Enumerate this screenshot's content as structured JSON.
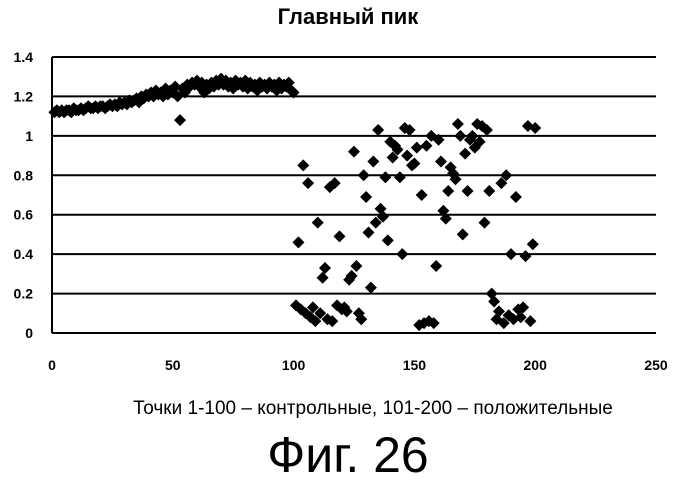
{
  "chart_data": {
    "type": "scatter",
    "title": "Главный пик",
    "xlabel": "Точки 1-100 – контрольные, 101-200 – положительные",
    "ylabel": "",
    "xlim": [
      0,
      250
    ],
    "ylim": [
      0,
      1.4
    ],
    "x_ticks": [
      "0",
      "50",
      "100",
      "150",
      "200",
      "250"
    ],
    "y_ticks": [
      "0",
      "0.2",
      "0.4",
      "0.6",
      "0.8",
      "1",
      "1.2",
      "1.4"
    ],
    "grid": "horizontal",
    "legend": "none",
    "marker": "diamond",
    "marker_color": "#000000",
    "series": [
      {
        "points": [
          [
            1,
            1.12
          ],
          [
            2,
            1.13
          ],
          [
            3,
            1.12
          ],
          [
            4,
            1.13
          ],
          [
            5,
            1.12
          ],
          [
            6,
            1.13
          ],
          [
            7,
            1.13
          ],
          [
            8,
            1.12
          ],
          [
            9,
            1.14
          ],
          [
            10,
            1.13
          ],
          [
            11,
            1.13
          ],
          [
            12,
            1.14
          ],
          [
            13,
            1.13
          ],
          [
            14,
            1.14
          ],
          [
            15,
            1.15
          ],
          [
            16,
            1.14
          ],
          [
            17,
            1.14
          ],
          [
            18,
            1.15
          ],
          [
            19,
            1.14
          ],
          [
            20,
            1.15
          ],
          [
            21,
            1.15
          ],
          [
            22,
            1.14
          ],
          [
            23,
            1.15
          ],
          [
            24,
            1.16
          ],
          [
            25,
            1.15
          ],
          [
            26,
            1.16
          ],
          [
            27,
            1.15
          ],
          [
            28,
            1.17
          ],
          [
            29,
            1.16
          ],
          [
            30,
            1.17
          ],
          [
            31,
            1.16
          ],
          [
            32,
            1.18
          ],
          [
            33,
            1.17
          ],
          [
            34,
            1.18
          ],
          [
            35,
            1.19
          ],
          [
            36,
            1.17
          ],
          [
            37,
            1.2
          ],
          [
            38,
            1.19
          ],
          [
            39,
            1.21
          ],
          [
            40,
            1.2
          ],
          [
            41,
            1.22
          ],
          [
            42,
            1.2
          ],
          [
            43,
            1.23
          ],
          [
            44,
            1.21
          ],
          [
            45,
            1.22
          ],
          [
            46,
            1.2
          ],
          [
            47,
            1.24
          ],
          [
            48,
            1.21
          ],
          [
            49,
            1.23
          ],
          [
            50,
            1.22
          ],
          [
            51,
            1.25
          ],
          [
            52,
            1.2
          ],
          [
            53,
            1.08
          ],
          [
            54,
            1.24
          ],
          [
            55,
            1.22
          ],
          [
            56,
            1.26
          ],
          [
            57,
            1.25
          ],
          [
            58,
            1.27
          ],
          [
            59,
            1.26
          ],
          [
            60,
            1.28
          ],
          [
            61,
            1.25
          ],
          [
            62,
            1.27
          ],
          [
            63,
            1.22
          ],
          [
            64,
            1.26
          ],
          [
            65,
            1.24
          ],
          [
            66,
            1.27
          ],
          [
            67,
            1.25
          ],
          [
            68,
            1.28
          ],
          [
            69,
            1.26
          ],
          [
            70,
            1.29
          ],
          [
            71,
            1.26
          ],
          [
            72,
            1.28
          ],
          [
            73,
            1.25
          ],
          [
            74,
            1.27
          ],
          [
            75,
            1.24
          ],
          [
            76,
            1.28
          ],
          [
            77,
            1.26
          ],
          [
            78,
            1.27
          ],
          [
            79,
            1.25
          ],
          [
            80,
            1.28
          ],
          [
            81,
            1.24
          ],
          [
            82,
            1.27
          ],
          [
            83,
            1.25
          ],
          [
            84,
            1.26
          ],
          [
            85,
            1.23
          ],
          [
            86,
            1.27
          ],
          [
            87,
            1.25
          ],
          [
            88,
            1.26
          ],
          [
            89,
            1.24
          ],
          [
            90,
            1.27
          ],
          [
            91,
            1.25
          ],
          [
            92,
            1.26
          ],
          [
            93,
            1.23
          ],
          [
            94,
            1.27
          ],
          [
            95,
            1.24
          ],
          [
            96,
            1.26
          ],
          [
            97,
            1.25
          ],
          [
            98,
            1.27
          ],
          [
            99,
            1.23
          ],
          [
            100,
            1.22
          ],
          [
            101,
            0.14
          ],
          [
            102,
            0.46
          ],
          [
            103,
            0.12
          ],
          [
            104,
            0.85
          ],
          [
            105,
            0.1
          ],
          [
            106,
            0.76
          ],
          [
            107,
            0.08
          ],
          [
            108,
            0.13
          ],
          [
            109,
            0.06
          ],
          [
            110,
            0.56
          ],
          [
            111,
            0.1
          ],
          [
            112,
            0.28
          ],
          [
            113,
            0.33
          ],
          [
            114,
            0.07
          ],
          [
            115,
            0.74
          ],
          [
            116,
            0.06
          ],
          [
            117,
            0.76
          ],
          [
            118,
            0.14
          ],
          [
            119,
            0.49
          ],
          [
            120,
            0.12
          ],
          [
            121,
            0.13
          ],
          [
            122,
            0.11
          ],
          [
            123,
            0.27
          ],
          [
            124,
            0.29
          ],
          [
            125,
            0.92
          ],
          [
            126,
            0.34
          ],
          [
            127,
            0.1
          ],
          [
            128,
            0.07
          ],
          [
            129,
            0.8
          ],
          [
            130,
            0.69
          ],
          [
            131,
            0.51
          ],
          [
            132,
            0.23
          ],
          [
            133,
            0.87
          ],
          [
            134,
            0.56
          ],
          [
            135,
            1.03
          ],
          [
            136,
            0.63
          ],
          [
            137,
            0.59
          ],
          [
            138,
            0.79
          ],
          [
            139,
            0.47
          ],
          [
            140,
            0.97
          ],
          [
            141,
            0.89
          ],
          [
            142,
            0.95
          ],
          [
            143,
            0.93
          ],
          [
            144,
            0.79
          ],
          [
            145,
            0.4
          ],
          [
            146,
            1.04
          ],
          [
            147,
            0.9
          ],
          [
            148,
            1.03
          ],
          [
            149,
            0.85
          ],
          [
            150,
            0.86
          ],
          [
            151,
            0.94
          ],
          [
            152,
            0.04
          ],
          [
            153,
            0.7
          ],
          [
            154,
            0.05
          ],
          [
            155,
            0.95
          ],
          [
            156,
            0.06
          ],
          [
            157,
            1.0
          ],
          [
            158,
            0.05
          ],
          [
            159,
            0.34
          ],
          [
            160,
            0.98
          ],
          [
            161,
            0.87
          ],
          [
            162,
            0.62
          ],
          [
            163,
            0.58
          ],
          [
            164,
            0.72
          ],
          [
            165,
            0.84
          ],
          [
            166,
            0.81
          ],
          [
            167,
            0.78
          ],
          [
            168,
            1.06
          ],
          [
            169,
            1.0
          ],
          [
            170,
            0.5
          ],
          [
            171,
            0.91
          ],
          [
            172,
            0.72
          ],
          [
            173,
            0.98
          ],
          [
            174,
            1.0
          ],
          [
            175,
            0.94
          ],
          [
            176,
            1.06
          ],
          [
            177,
            0.97
          ],
          [
            178,
            1.05
          ],
          [
            179,
            0.56
          ],
          [
            180,
            1.03
          ],
          [
            181,
            0.72
          ],
          [
            182,
            0.2
          ],
          [
            183,
            0.16
          ],
          [
            184,
            0.07
          ],
          [
            185,
            0.11
          ],
          [
            186,
            0.76
          ],
          [
            187,
            0.05
          ],
          [
            188,
            0.8
          ],
          [
            189,
            0.09
          ],
          [
            190,
            0.4
          ],
          [
            191,
            0.07
          ],
          [
            192,
            0.69
          ],
          [
            193,
            0.12
          ],
          [
            194,
            0.08
          ],
          [
            195,
            0.13
          ],
          [
            196,
            0.39
          ],
          [
            197,
            1.05
          ],
          [
            198,
            0.06
          ],
          [
            199,
            0.45
          ],
          [
            200,
            1.04
          ]
        ]
      }
    ]
  },
  "figure": {
    "caption": "Фиг. 26"
  }
}
